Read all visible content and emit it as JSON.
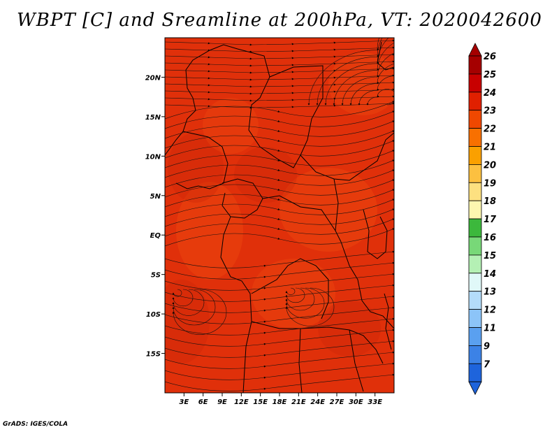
{
  "title": "WBPT [C] and Sreamline at 200hPa, VT: 2020042600",
  "credit": "GrADS: IGES/COLA",
  "map": {
    "field_colors": {
      "base": "#e0300a",
      "light": "#ee4a10",
      "dark": "#c8250a"
    },
    "lat_range": [
      -20,
      25
    ],
    "lon_range": [
      0,
      36
    ],
    "lat_ticks": [
      {
        "value": 20,
        "label": "20N"
      },
      {
        "value": 15,
        "label": "15N"
      },
      {
        "value": 10,
        "label": "10N"
      },
      {
        "value": 5,
        "label": "5N"
      },
      {
        "value": 0,
        "label": "EQ"
      },
      {
        "value": -5,
        "label": "5S"
      },
      {
        "value": -10,
        "label": "10S"
      },
      {
        "value": -15,
        "label": "15S"
      }
    ],
    "lon_ticks": [
      {
        "value": 3,
        "label": "3E"
      },
      {
        "value": 6,
        "label": "6E"
      },
      {
        "value": 9,
        "label": "9E"
      },
      {
        "value": 12,
        "label": "12E"
      },
      {
        "value": 15,
        "label": "15E"
      },
      {
        "value": 18,
        "label": "18E"
      },
      {
        "value": 21,
        "label": "21E"
      },
      {
        "value": 24,
        "label": "24E"
      },
      {
        "value": 27,
        "label": "27E"
      },
      {
        "value": 30,
        "label": "30E"
      },
      {
        "value": 33,
        "label": "33E"
      }
    ]
  },
  "colorbar": {
    "levels": [
      {
        "label": "26",
        "color": "#a50000"
      },
      {
        "label": "25",
        "color": "#c80000"
      },
      {
        "label": "24",
        "color": "#e02000"
      },
      {
        "label": "23",
        "color": "#f04800"
      },
      {
        "label": "22",
        "color": "#f87000"
      },
      {
        "label": "21",
        "color": "#faa000"
      },
      {
        "label": "20",
        "color": "#fcc040"
      },
      {
        "label": "19",
        "color": "#fde080"
      },
      {
        "label": "18",
        "color": "#fdf6b0"
      },
      {
        "label": "17",
        "color": "#3cb83c"
      },
      {
        "label": "16",
        "color": "#78d878"
      },
      {
        "label": "15",
        "color": "#b4f0b4"
      },
      {
        "label": "14",
        "color": "#e0f8f8"
      },
      {
        "label": "13",
        "color": "#b4dcfa"
      },
      {
        "label": "12",
        "color": "#8cc4f8"
      },
      {
        "label": "11",
        "color": "#5aa0f0"
      },
      {
        "label": "9",
        "color": "#3c82e6"
      },
      {
        "label": "7",
        "color": "#1e64dc"
      }
    ],
    "top_triangle_color": "#a50000",
    "bottom_triangle_color": "#1e64dc"
  }
}
